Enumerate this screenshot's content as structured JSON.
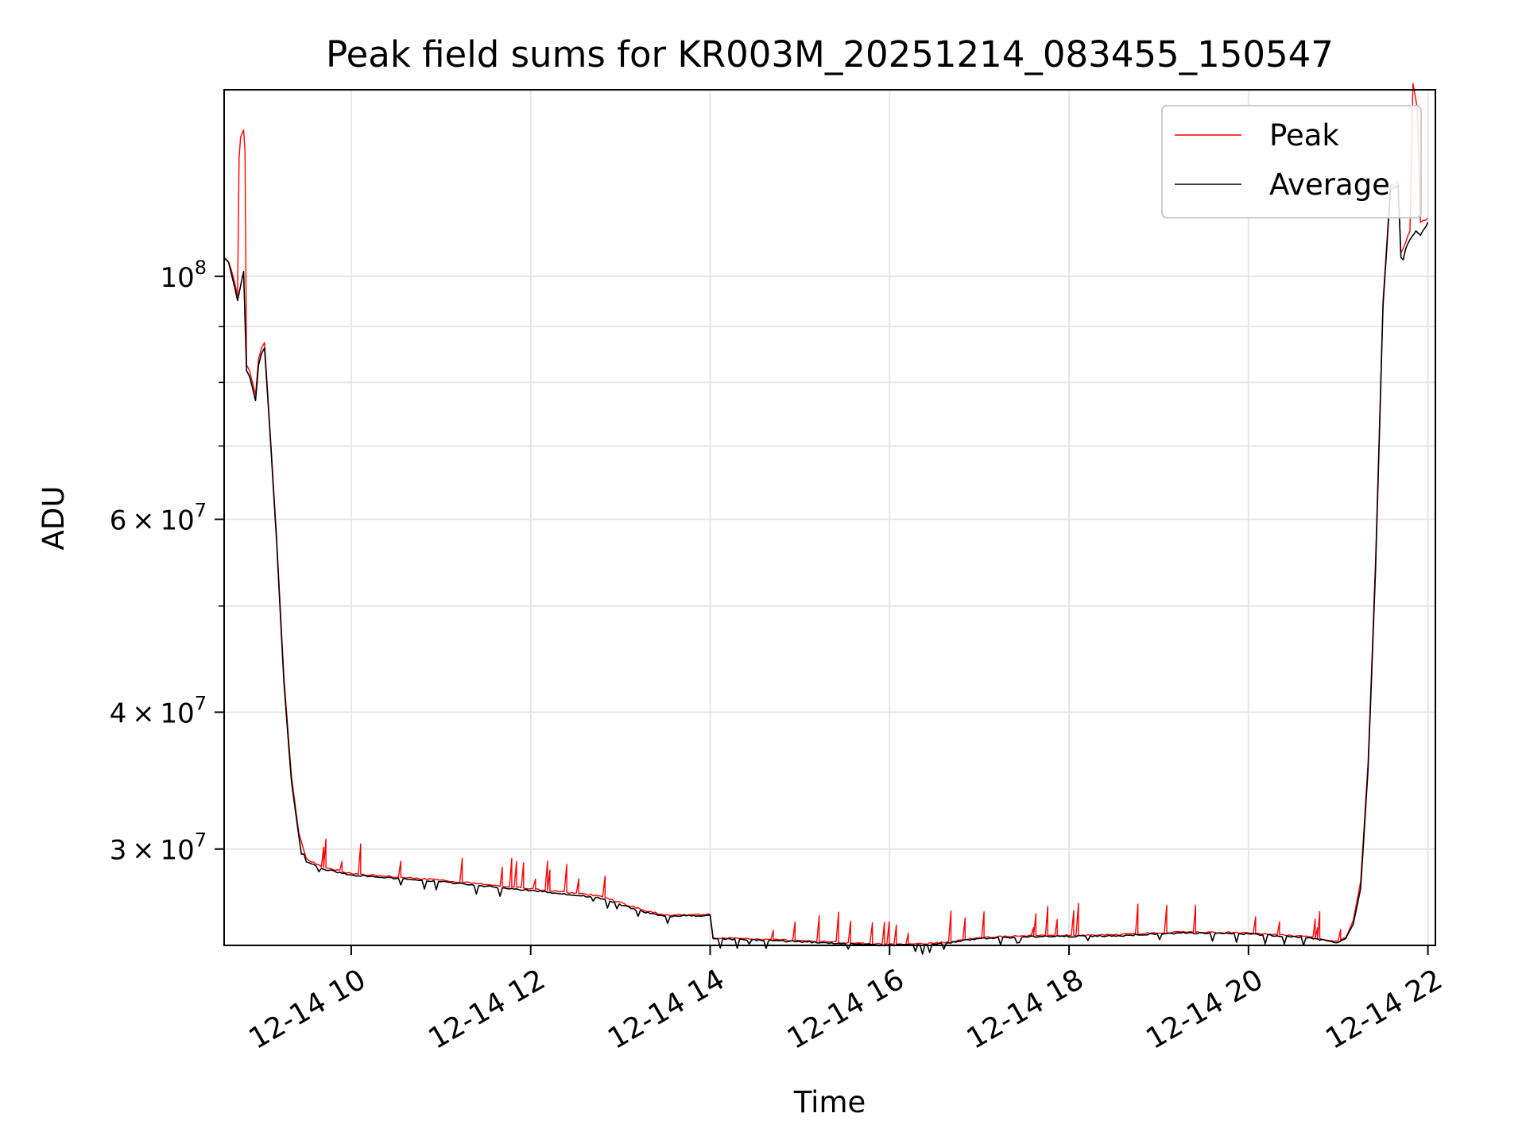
{
  "chart_data": {
    "type": "line",
    "title": "Peak field sums for KR003M_20251214_083455_150547",
    "xlabel": "Time",
    "ylabel": "ADU",
    "x_axis": {
      "type": "time",
      "range": [
        "2025-12-14 08:35",
        "2025-12-14 22:05"
      ],
      "ticks": [
        {
          "value": "2025-12-14 10:00",
          "label": "12-14 10"
        },
        {
          "value": "2025-12-14 12:00",
          "label": "12-14 12"
        },
        {
          "value": "2025-12-14 14:00",
          "label": "12-14 14"
        },
        {
          "value": "2025-12-14 16:00",
          "label": "12-14 16"
        },
        {
          "value": "2025-12-14 18:00",
          "label": "12-14 18"
        },
        {
          "value": "2025-12-14 20:00",
          "label": "12-14 20"
        },
        {
          "value": "2025-12-14 22:00",
          "label": "12-14 22"
        }
      ]
    },
    "y_axis": {
      "scale": "log",
      "range": [
        24500000,
        148000000
      ],
      "major_ticks": [
        {
          "value": 30000000,
          "base": "3 × 10",
          "exp": "7"
        },
        {
          "value": 40000000,
          "base": "4 × 10",
          "exp": "7"
        },
        {
          "value": 60000000,
          "base": "6 × 10",
          "exp": "7"
        },
        {
          "value": 100000000,
          "base": "10",
          "exp": "8"
        }
      ],
      "minor_ticks": [
        50000000,
        70000000,
        80000000,
        90000000
      ]
    },
    "grid": true,
    "legend": {
      "placement": "upper right"
    },
    "series": [
      {
        "name": "Peak",
        "color": "#ff0000",
        "points": [
          [
            "2025-12-14 08:35",
            104000000
          ],
          [
            "2025-12-14 08:38",
            103000000
          ],
          [
            "2025-12-14 08:41",
            100000000
          ],
          [
            "2025-12-14 08:44",
            96000000
          ],
          [
            "2025-12-14 08:45",
            128000000
          ],
          [
            "2025-12-14 08:46",
            134000000
          ],
          [
            "2025-12-14 08:48",
            136000000
          ],
          [
            "2025-12-14 08:49",
            130000000
          ],
          [
            "2025-12-14 08:50",
            83000000
          ],
          [
            "2025-12-14 08:52",
            82000000
          ],
          [
            "2025-12-14 08:55",
            79000000
          ],
          [
            "2025-12-14 08:56",
            78000000
          ],
          [
            "2025-12-14 08:58",
            84000000
          ],
          [
            "2025-12-14 09:00",
            86000000
          ],
          [
            "2025-12-14 09:02",
            87000000
          ],
          [
            "2025-12-14 09:05",
            75000000
          ],
          [
            "2025-12-14 09:10",
            58000000
          ],
          [
            "2025-12-14 09:15",
            43000000
          ],
          [
            "2025-12-14 09:20",
            35000000
          ],
          [
            "2025-12-14 09:25",
            31000000
          ],
          [
            "2025-12-14 09:30",
            29400000
          ],
          [
            "2025-12-14 09:40",
            28900000
          ],
          [
            "2025-12-14 10:00",
            28500000
          ],
          [
            "2025-12-14 11:00",
            28100000
          ],
          [
            "2025-12-14 12:00",
            27600000
          ],
          [
            "2025-12-14 12:45",
            27200000
          ],
          [
            "2025-12-14 13:15",
            26400000
          ],
          [
            "2025-12-14 13:30",
            26100000
          ],
          [
            "2025-12-14 14:00",
            26150000
          ],
          [
            "2025-12-14 14:02",
            24900000
          ],
          [
            "2025-12-14 15:00",
            24750000
          ],
          [
            "2025-12-14 15:55",
            24550000
          ],
          [
            "2025-12-14 16:30",
            24600000
          ],
          [
            "2025-12-14 17:00",
            24900000
          ],
          [
            "2025-12-14 17:30",
            25000000
          ],
          [
            "2025-12-14 18:30",
            25050000
          ],
          [
            "2025-12-14 19:15",
            25200000
          ],
          [
            "2025-12-14 20:00",
            25150000
          ],
          [
            "2025-12-14 20:40",
            24950000
          ],
          [
            "2025-12-14 21:00",
            24700000
          ],
          [
            "2025-12-14 21:05",
            24900000
          ],
          [
            "2025-12-14 21:10",
            25800000
          ],
          [
            "2025-12-14 21:15",
            28000000
          ],
          [
            "2025-12-14 21:20",
            36000000
          ],
          [
            "2025-12-14 21:25",
            55000000
          ],
          [
            "2025-12-14 21:30",
            95000000
          ],
          [
            "2025-12-14 21:35",
            121000000
          ],
          [
            "2025-12-14 21:40",
            122000000
          ],
          [
            "2025-12-14 21:42",
            105000000
          ],
          [
            "2025-12-14 21:48",
            110000000
          ],
          [
            "2025-12-14 21:50",
            150000000
          ],
          [
            "2025-12-14 21:53",
            142000000
          ],
          [
            "2025-12-14 21:55",
            112000000
          ],
          [
            "2025-12-14 22:00",
            113000000
          ]
        ]
      },
      {
        "name": "Average",
        "color": "#000000",
        "points": [
          [
            "2025-12-14 08:35",
            104000000
          ],
          [
            "2025-12-14 08:38",
            103000000
          ],
          [
            "2025-12-14 08:41",
            99000000
          ],
          [
            "2025-12-14 08:44",
            95000000
          ],
          [
            "2025-12-14 08:46",
            98000000
          ],
          [
            "2025-12-14 08:48",
            101000000
          ],
          [
            "2025-12-14 08:50",
            82000000
          ],
          [
            "2025-12-14 08:52",
            81000000
          ],
          [
            "2025-12-14 08:55",
            78000000
          ],
          [
            "2025-12-14 08:56",
            77000000
          ],
          [
            "2025-12-14 08:58",
            83000000
          ],
          [
            "2025-12-14 09:00",
            85000000
          ],
          [
            "2025-12-14 09:02",
            86000000
          ],
          [
            "2025-12-14 09:05",
            74500000
          ],
          [
            "2025-12-14 09:10",
            57500000
          ],
          [
            "2025-12-14 09:15",
            42500000
          ],
          [
            "2025-12-14 09:20",
            34600000
          ],
          [
            "2025-12-14 09:25",
            30800000
          ],
          [
            "2025-12-14 09:30",
            29200000
          ],
          [
            "2025-12-14 09:40",
            28800000
          ],
          [
            "2025-12-14 10:00",
            28400000
          ],
          [
            "2025-12-14 11:00",
            28000000
          ],
          [
            "2025-12-14 12:00",
            27500000
          ],
          [
            "2025-12-14 12:45",
            27100000
          ],
          [
            "2025-12-14 13:15",
            26300000
          ],
          [
            "2025-12-14 13:30",
            26050000
          ],
          [
            "2025-12-14 14:00",
            26100000
          ],
          [
            "2025-12-14 14:02",
            24850000
          ],
          [
            "2025-12-14 15:00",
            24700000
          ],
          [
            "2025-12-14 15:55",
            24500000
          ],
          [
            "2025-12-14 16:30",
            24550000
          ],
          [
            "2025-12-14 17:00",
            24850000
          ],
          [
            "2025-12-14 17:30",
            24950000
          ],
          [
            "2025-12-14 18:30",
            25000000
          ],
          [
            "2025-12-14 19:15",
            25150000
          ],
          [
            "2025-12-14 20:00",
            25100000
          ],
          [
            "2025-12-14 20:40",
            24900000
          ],
          [
            "2025-12-14 21:00",
            24650000
          ],
          [
            "2025-12-14 21:05",
            24850000
          ],
          [
            "2025-12-14 21:10",
            25600000
          ],
          [
            "2025-12-14 21:15",
            27600000
          ],
          [
            "2025-12-14 21:20",
            35500000
          ],
          [
            "2025-12-14 21:25",
            54000000
          ],
          [
            "2025-12-14 21:30",
            94000000
          ],
          [
            "2025-12-14 21:35",
            120000000
          ],
          [
            "2025-12-14 21:40",
            121000000
          ],
          [
            "2025-12-14 21:42",
            104000000
          ],
          [
            "2025-12-14 21:48",
            108000000
          ],
          [
            "2025-12-14 21:52",
            110000000
          ],
          [
            "2025-12-14 21:55",
            109000000
          ],
          [
            "2025-12-14 22:00",
            112000000
          ]
        ]
      }
    ]
  }
}
